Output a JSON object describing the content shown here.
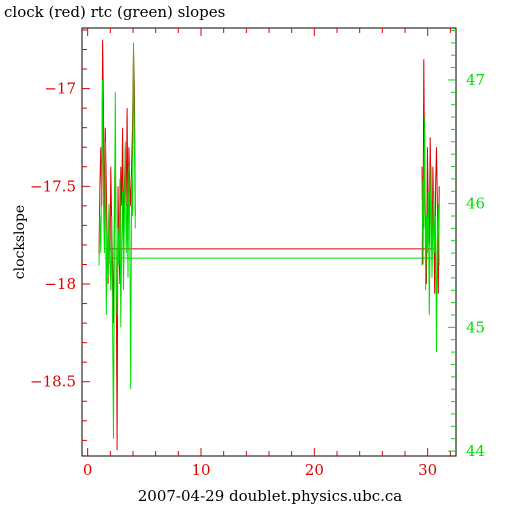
{
  "chart_data": {
    "type": "line",
    "title": "clock (red) rtc (green) slopes",
    "xlabel": "2007-04-29 doublet.physics.ubc.ca",
    "ylabel": "clockslope",
    "y2label": "",
    "xlim": [
      -0.5,
      32.5
    ],
    "ylim": [
      -18.88,
      -16.69
    ],
    "y2lim": [
      43.96,
      47.42
    ],
    "xticks": [
      0,
      10,
      20,
      30
    ],
    "yticks": [
      -17,
      -17.5,
      -18,
      -18.5
    ],
    "y2ticks": [
      44,
      45,
      46,
      47
    ],
    "colors": {
      "clock": "#e00000",
      "rtc": "#00e000",
      "left_axis": "#e00000",
      "right_axis": "#00e000",
      "frame": "#000000"
    },
    "series": [
      {
        "axis": "left",
        "color": "#e00000",
        "x": [
          1.0,
          1.08,
          1.16,
          1.24,
          1.32,
          1.4,
          1.48,
          1.56,
          1.64,
          1.72,
          1.8,
          1.88,
          1.96,
          2.04,
          2.12,
          2.2,
          2.28,
          2.36,
          2.44,
          2.52,
          2.6,
          2.68,
          2.76,
          2.84,
          2.92,
          3.0,
          3.08,
          3.16,
          3.24,
          3.32,
          3.4,
          3.48,
          3.56,
          3.64,
          3.72,
          3.8,
          3.88,
          3.96,
          4.04,
          4.12,
          4.2,
          29.5,
          29.58,
          29.66,
          29.74,
          29.82,
          29.9,
          29.98,
          30.06,
          30.14,
          30.22,
          30.3,
          30.38,
          30.46,
          30.54,
          30.62,
          30.7,
          30.78,
          30.86,
          30.94,
          31.02
        ],
        "y": [
          -17.85,
          -17.5,
          -17.3,
          -17.6,
          -16.75,
          -17.1,
          -17.7,
          -17.2,
          -17.5,
          -17.8,
          -18.0,
          -17.6,
          -17.9,
          -17.4,
          -17.7,
          -17.9,
          -18.2,
          -17.6,
          -17.3,
          -17.9,
          -18.85,
          -17.5,
          -17.8,
          -18.0,
          -17.4,
          -17.6,
          -17.2,
          -17.8,
          -17.5,
          -17.3,
          -17.6,
          -17.1,
          -17.7,
          -17.3,
          -17.5,
          -17.6,
          -17.4,
          -17.2,
          -16.8,
          -17.0,
          -17.65,
          -17.4,
          -17.9,
          -16.85,
          -17.5,
          -17.7,
          -18.0,
          -17.3,
          -17.6,
          -17.8,
          -17.25,
          -17.6,
          -17.9,
          -17.4,
          -17.7,
          -18.05,
          -17.5,
          -17.3,
          -17.6,
          -18.05,
          -17.5
        ]
      },
      {
        "axis": "right",
        "color": "#00e000",
        "x": [
          1.0,
          1.08,
          1.16,
          1.24,
          1.32,
          1.4,
          1.48,
          1.56,
          1.64,
          1.72,
          1.8,
          1.88,
          1.96,
          2.04,
          2.12,
          2.2,
          2.28,
          2.36,
          2.44,
          2.52,
          2.6,
          2.68,
          2.76,
          2.84,
          2.92,
          3.0,
          3.08,
          3.16,
          3.24,
          3.32,
          3.4,
          3.48,
          3.56,
          3.64,
          3.72,
          3.8,
          3.88,
          3.96,
          4.04,
          4.12,
          4.2,
          29.5,
          29.58,
          29.66,
          29.74,
          29.82,
          29.9,
          29.98,
          30.06,
          30.14,
          30.22,
          30.3,
          30.38,
          30.46,
          30.54,
          30.62,
          30.7,
          30.78,
          30.86,
          30.94,
          31.02
        ],
        "y": [
          45.5,
          45.9,
          45.6,
          46.3,
          47.0,
          46.0,
          45.6,
          46.5,
          45.1,
          45.8,
          45.4,
          46.0,
          45.6,
          45.3,
          45.9,
          45.0,
          44.1,
          45.7,
          46.9,
          45.4,
          45.1,
          45.8,
          45.5,
          46.2,
          45.0,
          45.7,
          46.1,
          45.3,
          45.9,
          46.5,
          45.6,
          46.0,
          45.4,
          46.3,
          45.8,
          44.5,
          46.2,
          45.9,
          47.3,
          46.5,
          45.8,
          45.5,
          46.2,
          45.8,
          46.7,
          45.3,
          45.9,
          45.6,
          46.1,
          45.1,
          45.8,
          46.3,
          45.4,
          45.9,
          46.1,
          45.6,
          45.9,
          44.8,
          45.7,
          46.0,
          45.5
        ]
      }
    ],
    "baselines": [
      {
        "axis": "left",
        "color": "#e00000",
        "y": -17.82,
        "x_from": 1.5,
        "x_to": 30.5
      },
      {
        "axis": "right",
        "color": "#00e000",
        "y": 45.56,
        "x_from": 1.5,
        "x_to": 30.5
      }
    ]
  }
}
